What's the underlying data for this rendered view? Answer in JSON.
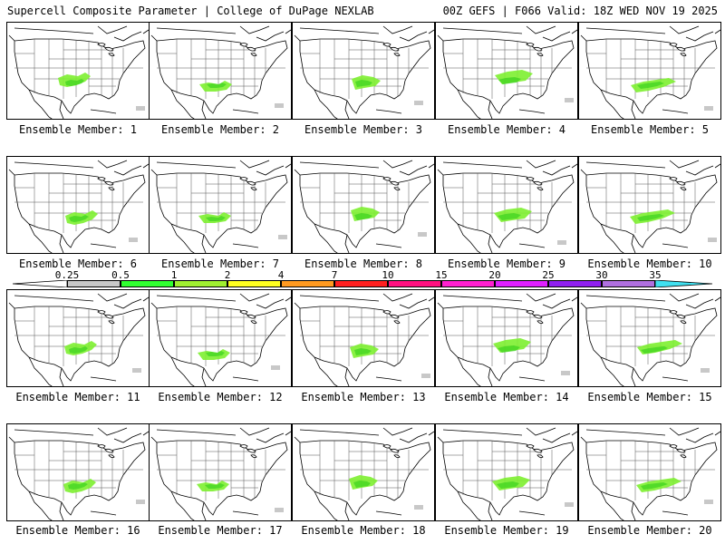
{
  "header": {
    "left": "Supercell Composite Parameter | College of DuPage NEXLAB",
    "right": "00Z GEFS | F066 Valid: 18Z WED NOV 19 2025"
  },
  "member_label": "Ensemble Member:",
  "members": [
    "1",
    "2",
    "3",
    "4",
    "5",
    "6",
    "7",
    "8",
    "9",
    "10",
    "11",
    "12",
    "13",
    "14",
    "15",
    "16",
    "17",
    "18",
    "19",
    "20"
  ],
  "colorbar": {
    "levels": [
      "0.25",
      "0.5",
      "1",
      "2",
      "4",
      "7",
      "10",
      "15",
      "20",
      "25",
      "30",
      "35"
    ],
    "colors": [
      "#c8c8c8",
      "#30ff30",
      "#a0f030",
      "#ffff20",
      "#ff9a20",
      "#ff2020",
      "#ff1080",
      "#ff20d0",
      "#e020ff",
      "#9020f0",
      "#b070e0",
      "#40e0f0"
    ],
    "highlight": "#7df030",
    "highlight_dark": "#3ad21e"
  }
}
